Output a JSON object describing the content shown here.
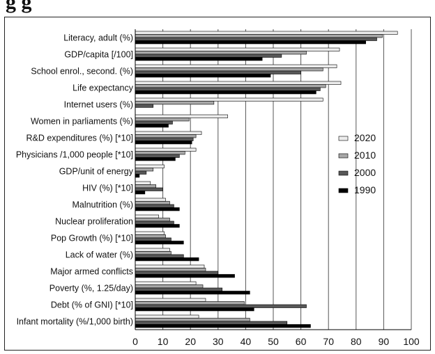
{
  "page": {
    "title_fragment": "g                               g"
  },
  "chart_data": {
    "type": "bar",
    "orientation": "horizontal",
    "categories": [
      "Literacy, adult (%)",
      "GDP/capita [/100]",
      "School enrol., second. (%)",
      "Life expectancy",
      "Internet users (%)",
      "Women in parliaments (%)",
      "R&D expenditures (%) [*10]",
      "Physicians /1,000 people [*10]",
      "GDP/unit of energy",
      "HIV (%) [*10]",
      "Malnutrition (%)",
      "Nuclear proliferation",
      "Pop Growth (%) [*10]",
      "Lack of water (%)",
      "Major armed conflicts",
      "Poverty (%, 1.25/day)",
      "Debt (% of GNI) [*10]",
      "Infant mortality (%/1,000 birth)"
    ],
    "series": [
      {
        "name": "2020",
        "color": "#ececec",
        "values": [
          95,
          74,
          73,
          74.5,
          68,
          33.5,
          24,
          22,
          10.5,
          5.5,
          11,
          8.5,
          10.5,
          12.5,
          25,
          22,
          25.5,
          23
        ]
      },
      {
        "name": "2010",
        "color": "#a8a8a8",
        "values": [
          89.5,
          62,
          68,
          69,
          28.5,
          19.5,
          22,
          18,
          6.5,
          7.5,
          12.5,
          12.5,
          11,
          13,
          25.5,
          24.5,
          39.5,
          41.5
        ]
      },
      {
        "name": "2000",
        "color": "#585858",
        "values": [
          87.5,
          53,
          60,
          67,
          6.5,
          13.5,
          21,
          16,
          4,
          10,
          14,
          14,
          13,
          17.5,
          30,
          31.5,
          62,
          55
        ]
      },
      {
        "name": "1990",
        "color": "#000000",
        "values": [
          83.5,
          46,
          49,
          65.5,
          0,
          12,
          20.5,
          14.5,
          1.5,
          3.5,
          16,
          16,
          17.5,
          23,
          36,
          41.5,
          43,
          63.5
        ]
      }
    ],
    "x_ticks": [
      "0",
      "10",
      "20",
      "30",
      "40",
      "50",
      "60",
      "70",
      "80",
      "90",
      "100"
    ],
    "xlim": [
      0,
      100
    ],
    "grid": "vertical",
    "legend_position": "right"
  }
}
